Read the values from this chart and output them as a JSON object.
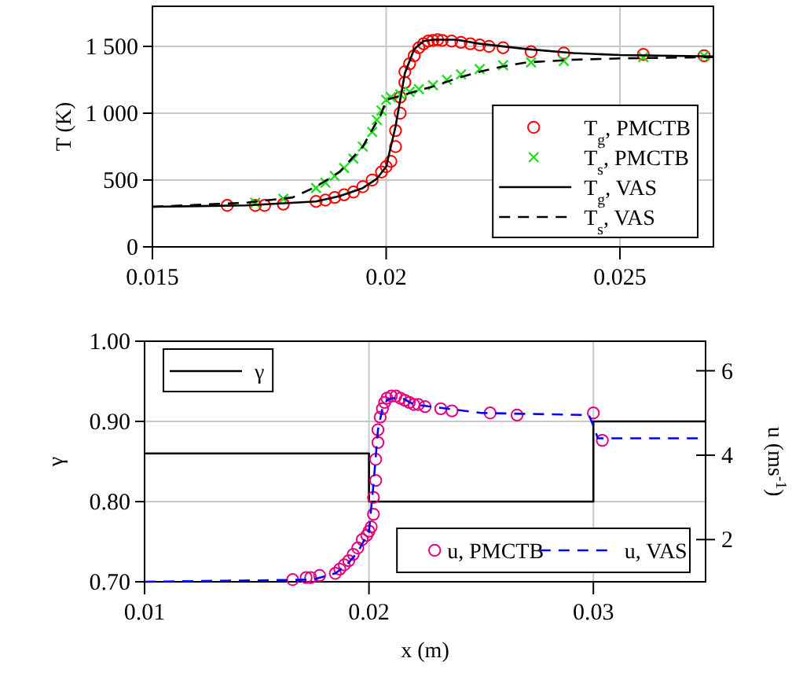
{
  "chart_data": [
    {
      "type": "line",
      "ylabel": "T (K)",
      "xlim": [
        0.015,
        0.027
      ],
      "xticks": [
        0.015,
        0.02,
        0.025
      ],
      "ylim": [
        0,
        1800
      ],
      "yticks": [
        0,
        500,
        {
          "value": 1000,
          "label": "1 000"
        },
        {
          "value": 1500,
          "label": "1 500"
        }
      ],
      "grid": true,
      "legend": "bottom right",
      "series": [
        {
          "name": "T$_{g}$, PMCTB",
          "type": "scatter",
          "marker": "circle",
          "color": "#ff0000",
          "x": [
            0.0166,
            0.0172,
            0.0174,
            0.0178,
            0.0185,
            0.0187,
            0.0189,
            0.0191,
            0.0193,
            0.0195,
            0.0197,
            0.0199,
            0.02,
            0.0201,
            0.0202,
            0.0202,
            0.0203,
            0.0203,
            0.0204,
            0.0204,
            0.0205,
            0.0206,
            0.0207,
            0.0208,
            0.0209,
            0.021,
            0.0211,
            0.0212,
            0.0214,
            0.0216,
            0.0218,
            0.022,
            0.0222,
            0.0225,
            0.0231,
            0.0238,
            0.0255,
            0.0268
          ],
          "values": [
            310,
            310,
            310,
            320,
            340,
            350,
            370,
            390,
            410,
            450,
            500,
            560,
            600,
            640,
            750,
            870,
            1000,
            1120,
            1230,
            1310,
            1370,
            1430,
            1490,
            1520,
            1540,
            1545,
            1550,
            1545,
            1540,
            1530,
            1520,
            1510,
            1500,
            1490,
            1460,
            1450,
            1440,
            1430
          ]
        },
        {
          "name": "T$_{s}$, PMCTB",
          "type": "scatter",
          "marker": "cross",
          "color": "#22dd22",
          "x": [
            0.0172,
            0.0178,
            0.0185,
            0.0187,
            0.0189,
            0.0191,
            0.0193,
            0.0195,
            0.0197,
            0.0198,
            0.0199,
            0.02,
            0.0201,
            0.0203,
            0.0205,
            0.0207,
            0.021,
            0.0213,
            0.0216,
            0.022,
            0.0225,
            0.0231,
            0.0238,
            0.0255,
            0.0268
          ],
          "values": [
            330,
            360,
            440,
            480,
            530,
            590,
            660,
            750,
            860,
            950,
            1020,
            1100,
            1120,
            1140,
            1160,
            1180,
            1210,
            1250,
            1290,
            1330,
            1360,
            1380,
            1390,
            1420,
            1430
          ]
        },
        {
          "name": "T$_{g}$, VAS",
          "line_style": "solid",
          "color": "#000000",
          "x": [
            0.015,
            0.017,
            0.0185,
            0.019,
            0.0195,
            0.0198,
            0.02,
            0.0202,
            0.0204,
            0.0206,
            0.0208,
            0.021,
            0.0215,
            0.022,
            0.023,
            0.024,
            0.025,
            0.027
          ],
          "values": [
            300,
            310,
            340,
            380,
            440,
            510,
            600,
            900,
            1300,
            1480,
            1540,
            1550,
            1550,
            1520,
            1480,
            1450,
            1435,
            1425
          ]
        },
        {
          "name": "T$_{s}$, VAS",
          "line_style": "dashed",
          "color": "#000000",
          "x": [
            0.015,
            0.017,
            0.018,
            0.0185,
            0.019,
            0.0195,
            0.0199,
            0.02,
            0.0205,
            0.021,
            0.0215,
            0.022,
            0.0225,
            0.023,
            0.024,
            0.025,
            0.027
          ],
          "values": [
            300,
            330,
            370,
            450,
            560,
            750,
            1000,
            1100,
            1150,
            1200,
            1260,
            1310,
            1350,
            1380,
            1400,
            1410,
            1420
          ]
        }
      ]
    },
    {
      "type": "step",
      "xlabel": "x (m)",
      "ylabel": "γ",
      "y2label": "u (ms$^{-1}$)",
      "xlim": [
        0.01,
        0.035
      ],
      "xticks": [
        0.01,
        0.02,
        0.03
      ],
      "ylim": [
        0.7,
        1
      ],
      "yticks": [
        {
          "value": 0.7,
          "label": "0.70"
        },
        {
          "value": 0.8,
          "label": "0.80"
        },
        {
          "value": 0.9,
          "label": "0.90"
        },
        {
          "value": 1,
          "label": "1.00"
        }
      ],
      "y2lim": [
        1,
        6.7
      ],
      "y2ticks": [
        2,
        4,
        6
      ],
      "grid": true,
      "legend": "bottom right",
      "series": [
        {
          "name": "γ",
          "line_style": "solid",
          "color": "#000000",
          "x": [
            0.01,
            0.02,
            0.03,
            0.035
          ],
          "values": [
            0.86,
            0.8,
            0.9,
            0.9
          ]
        },
        {
          "name": "u, PMCTB",
          "type": "scatter",
          "axis": "y2",
          "marker": "circle",
          "color": "#e6007e",
          "x": [
            0.0166,
            0.0172,
            0.0174,
            0.0178,
            0.0185,
            0.0187,
            0.0189,
            0.0191,
            0.0193,
            0.0195,
            0.0197,
            0.0199,
            0.02,
            0.0201,
            0.0202,
            0.0202,
            0.0203,
            0.0203,
            0.0204,
            0.0204,
            0.0205,
            0.0206,
            0.0207,
            0.0208,
            0.021,
            0.0212,
            0.0214,
            0.0216,
            0.0218,
            0.022,
            0.0222,
            0.0225,
            0.0232,
            0.0237,
            0.0254,
            0.0266,
            0.03,
            0.0304
          ],
          "values": [
            1.05,
            1.1,
            1.1,
            1.15,
            1.2,
            1.3,
            1.4,
            1.5,
            1.65,
            1.8,
            2.0,
            2.1,
            2.2,
            2.3,
            2.6,
            3.0,
            3.4,
            3.9,
            4.3,
            4.6,
            4.9,
            5.1,
            5.25,
            5.35,
            5.4,
            5.4,
            5.35,
            5.3,
            5.25,
            5.2,
            5.2,
            5.15,
            5.1,
            5.05,
            5.0,
            4.95,
            5.0,
            4.35
          ]
        },
        {
          "name": "u, VAS",
          "type": "line",
          "axis": "y2",
          "line_style": "dashed",
          "color": "#0000ff",
          "x": [
            0.01,
            0.0175,
            0.0185,
            0.019,
            0.0195,
            0.02,
            0.0202,
            0.0204,
            0.0206,
            0.0208,
            0.021,
            0.0215,
            0.022,
            0.025,
            0.0298,
            0.03,
            0.0302,
            0.035
          ],
          "values": [
            1,
            1.05,
            1.2,
            1.4,
            1.7,
            2.2,
            3.3,
            4.6,
            5.1,
            5.3,
            5.35,
            5.35,
            5.2,
            5.0,
            4.95,
            4.7,
            4.4,
            4.4
          ]
        }
      ]
    }
  ]
}
